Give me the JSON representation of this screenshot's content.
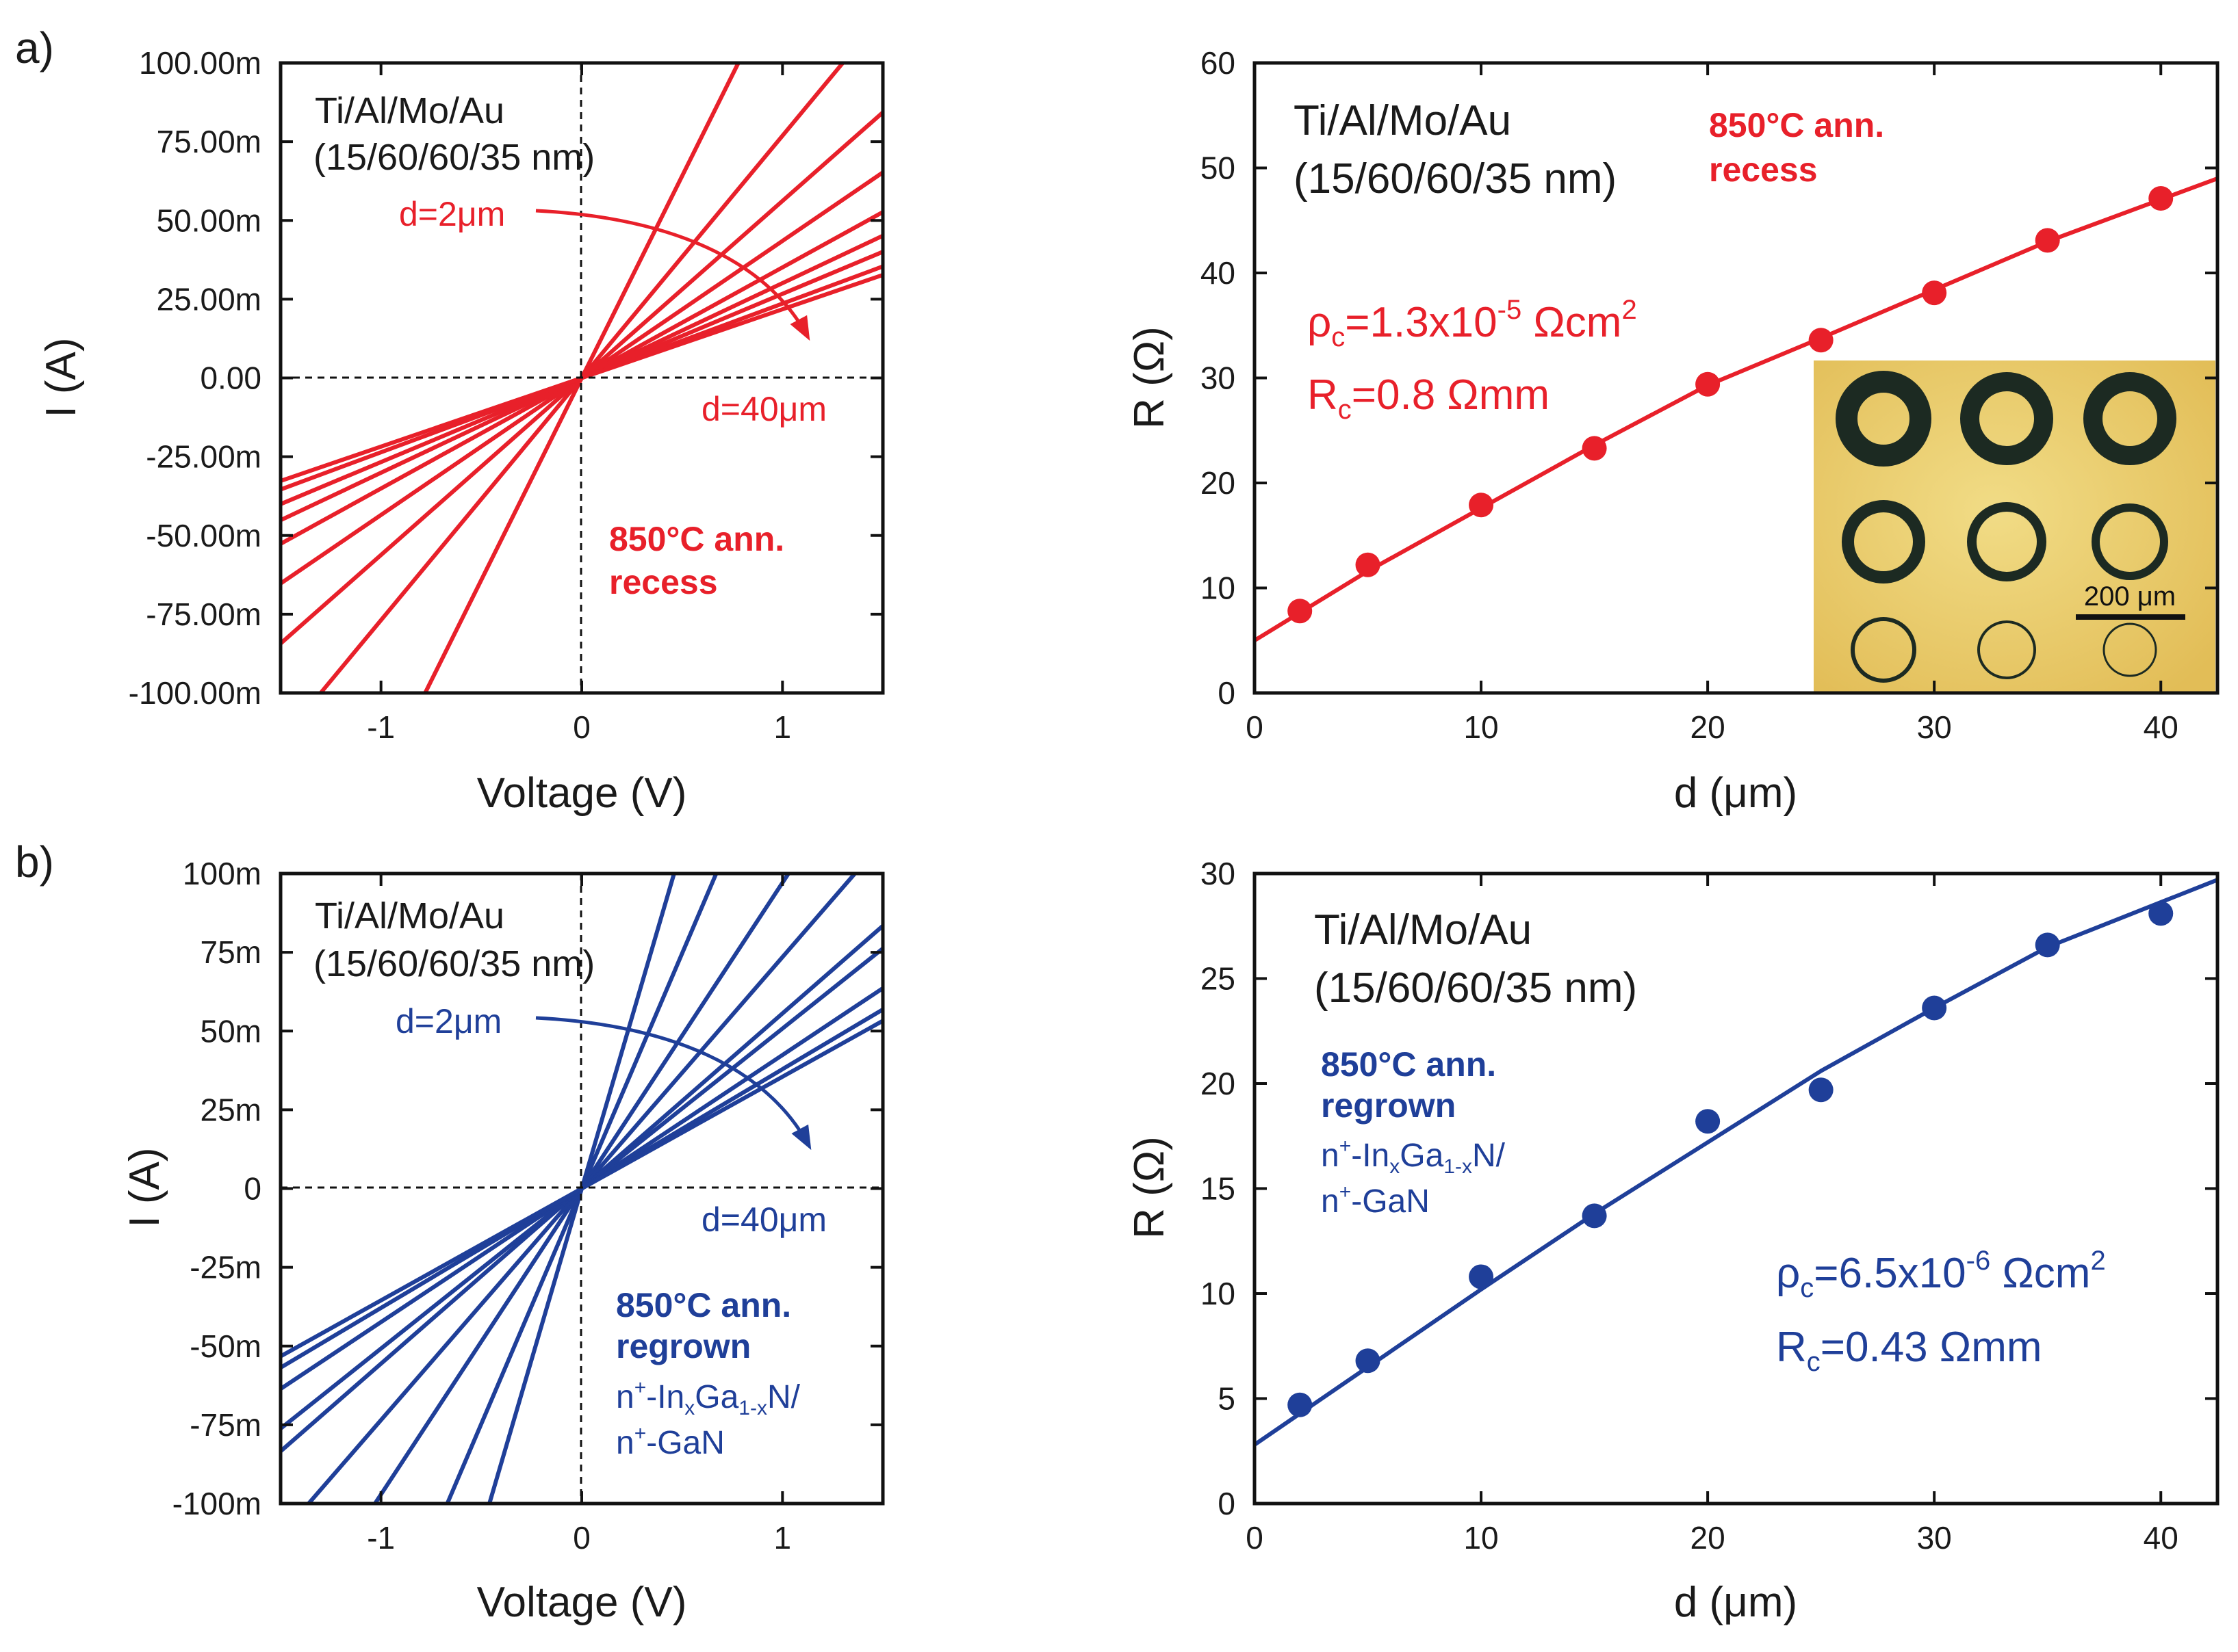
{
  "chart_data": [
    {
      "id": "a-iv",
      "panel_label": "a)",
      "type": "line",
      "xlabel": "Voltage (V)",
      "ylabel": "I (A)",
      "xlim": [
        -1.5,
        1.5
      ],
      "ylim": [
        -0.1,
        0.1
      ],
      "xticks": [
        -1,
        0,
        1
      ],
      "xtick_labels": [
        "-1",
        "0",
        "1"
      ],
      "yticks": [
        0.1,
        0.075,
        0.05,
        0.025,
        0,
        -0.025,
        -0.05,
        -0.075,
        -0.1
      ],
      "ytick_labels": [
        "100.00m",
        "75.00m",
        "50.00m",
        "25.00m",
        "0.00",
        "-25.00m",
        "-50.00m",
        "-75.00m",
        "-100.00m"
      ],
      "color": "#e8202a",
      "slopes_A_per_V": [
        0.1282,
        0.0769,
        0.0562,
        0.0435,
        0.0351,
        0.0301,
        0.0267,
        0.0236,
        0.0218
      ],
      "annotations": {
        "metal": "Ti/Al/Mo/Au",
        "thickness": "(15/60/60/35 nm)",
        "d_small": "d=2μm",
        "d_large": "d=40μm",
        "anneal": "850°C ann.",
        "process": "recess"
      }
    },
    {
      "id": "a-tlm",
      "type": "scatter",
      "xlabel": "d (μm)",
      "ylabel": "R (Ω)",
      "xlim": [
        0,
        42.5
      ],
      "ylim": [
        0,
        60
      ],
      "xticks": [
        0,
        10,
        20,
        30,
        40
      ],
      "yticks": [
        0,
        10,
        20,
        30,
        40,
        50,
        60
      ],
      "color": "#e8202a",
      "x": [
        2,
        5,
        10,
        15,
        20,
        25,
        30,
        35,
        40
      ],
      "y": [
        7.8,
        12.2,
        17.9,
        23.3,
        29.4,
        33.6,
        38.1,
        43.1,
        47.1
      ],
      "fit": {
        "type": "line",
        "x": [
          0,
          5,
          10,
          15,
          20,
          25,
          30,
          35,
          42.5
        ],
        "y": [
          5.0,
          11.6,
          17.6,
          23.6,
          29.3,
          33.8,
          38.4,
          43.0,
          49.0
        ]
      },
      "annotations": {
        "metal": "Ti/Al/Mo/Au",
        "thickness": "(15/60/60/35 nm)",
        "anneal": "850°C ann.",
        "process": "recess",
        "rho_prefix": "ρ",
        "rho_sub": "c",
        "rho_value": "=1.3x10",
        "rho_exp": "-5",
        "rho_unit": " Ωcm",
        "rho_unit_exp": "2",
        "rc_prefix": "R",
        "rc_sub": "c",
        "rc_value": "=0.8 Ωmm",
        "scale_bar": "200 μm"
      }
    },
    {
      "id": "b-iv",
      "panel_label": "b)",
      "type": "line",
      "xlabel": "Voltage (V)",
      "ylabel": "I (A)",
      "xlim": [
        -1.5,
        1.5
      ],
      "ylim": [
        -0.1,
        0.1
      ],
      "xticks": [
        -1,
        0,
        1
      ],
      "xtick_labels": [
        "-1",
        "0",
        "1"
      ],
      "yticks": [
        0.1,
        0.075,
        0.05,
        0.025,
        0,
        -0.025,
        -0.05,
        -0.075,
        -0.1
      ],
      "ytick_labels": [
        "100m",
        "75m",
        "50m",
        "25m",
        "0",
        "-25m",
        "-50m",
        "-75m",
        "-100m"
      ],
      "color": "#1f3f99",
      "slopes_A_per_V": [
        0.2174,
        0.1493,
        0.0971,
        0.0735,
        0.0556,
        0.0508,
        0.0424,
        0.0379,
        0.0355
      ],
      "annotations": {
        "metal": "Ti/Al/Mo/Au",
        "thickness": "(15/60/60/35 nm)",
        "d_small": "d=2μm",
        "d_large": "d=40μm",
        "anneal": "850°C ann.",
        "process": "regrown",
        "layer1_a": "n",
        "layer1_sup": "+",
        "layer1_b": "-In",
        "layer1_sub1": "x",
        "layer1_c": "Ga",
        "layer1_sub2": "1-x",
        "layer1_d": "N/",
        "layer2_a": "n",
        "layer2_sup": "+",
        "layer2_b": "-GaN"
      }
    },
    {
      "id": "b-tlm",
      "type": "scatter",
      "xlabel": "d (μm)",
      "ylabel": "R (Ω)",
      "xlim": [
        0,
        42.5
      ],
      "ylim": [
        0,
        30
      ],
      "xticks": [
        0,
        10,
        20,
        30,
        40
      ],
      "yticks": [
        0,
        5,
        10,
        15,
        20,
        25,
        30
      ],
      "color": "#1f3f99",
      "x": [
        2,
        5,
        10,
        15,
        20,
        25,
        30,
        35,
        40
      ],
      "y": [
        4.7,
        6.8,
        10.8,
        13.7,
        18.2,
        19.7,
        23.6,
        26.6,
        28.1
      ],
      "fit": {
        "type": "line",
        "x": [
          0,
          5,
          10,
          15,
          20,
          25,
          30,
          35,
          42.5
        ],
        "y": [
          2.8,
          6.5,
          10.2,
          13.8,
          17.2,
          20.6,
          23.6,
          26.5,
          29.7
        ]
      },
      "annotations": {
        "metal": "Ti/Al/Mo/Au",
        "thickness": "(15/60/60/35 nm)",
        "anneal": "850°C ann.",
        "process": "regrown",
        "layer1_a": "n",
        "layer1_sup": "+",
        "layer1_b": "-In",
        "layer1_sub1": "x",
        "layer1_c": "Ga",
        "layer1_sub2": "1-x",
        "layer1_d": "N/",
        "layer2_a": "n",
        "layer2_sup": "+",
        "layer2_b": "-GaN",
        "rho_prefix": "ρ",
        "rho_sub": "c",
        "rho_value": "=6.5x10",
        "rho_exp": "-6",
        "rho_unit": " Ωcm",
        "rho_unit_exp": "2",
        "rc_prefix": "R",
        "rc_sub": "c",
        "rc_value": "=0.43 Ωmm"
      }
    }
  ]
}
